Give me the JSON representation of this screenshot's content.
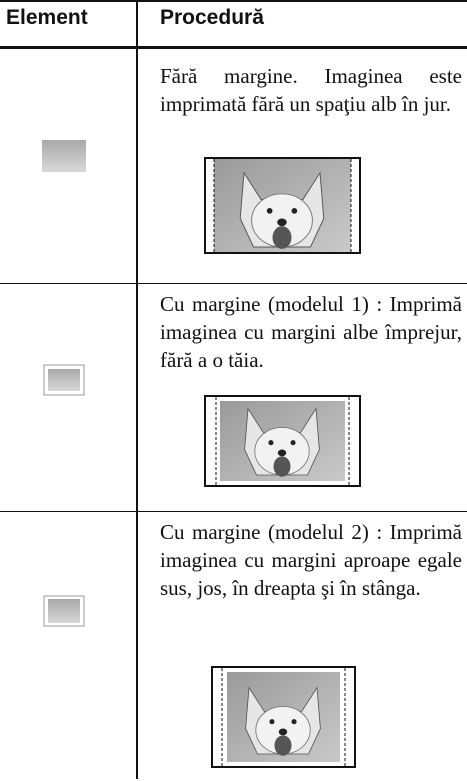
{
  "header": {
    "columns": [
      "Element",
      "Procedură"
    ]
  },
  "rows": [
    {
      "text": "Fără margine. Imaginea este imprimată fără un spaţiu alb în jur."
    },
    {
      "text": "Cu margine (modelul 1) : Imprimă imaginea cu margini albe împrejur, fără a o tăia."
    },
    {
      "text": "Cu margine (modelul 2) : Imprimă imaginea cu margini aproape egale sus, jos, în dreapta şi în stânga."
    }
  ]
}
